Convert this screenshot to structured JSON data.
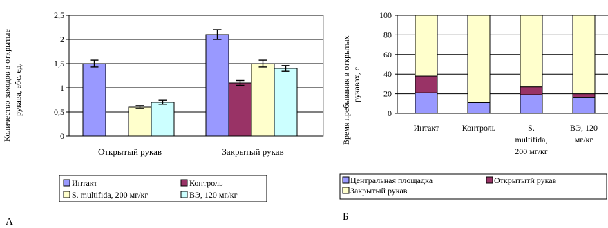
{
  "panel_labels": {
    "a": "А",
    "b": "Б"
  },
  "colors": {
    "intact": "#9999ff",
    "control": "#993366",
    "smultifida": "#ffffcc",
    "ve": "#ccffff",
    "central": "#9999ff",
    "open": "#993366",
    "closed": "#ffffcc"
  },
  "chart_data": [
    {
      "type": "bar",
      "ylabel": "Количество заходов в открытые рукава, абс. ед.",
      "ylim": [
        0,
        2.5
      ],
      "yticks": [
        "0",
        "0,5",
        "1",
        "1,5",
        "2",
        "2,5"
      ],
      "grid": true,
      "categories": [
        "Открытый рукав",
        "Закрытый рукав"
      ],
      "series": [
        {
          "name": "Интакт",
          "values": [
            1.5,
            2.1
          ],
          "errors": [
            0.07,
            0.1
          ]
        },
        {
          "name": "Контроль",
          "values": [
            0,
            1.1
          ],
          "errors": [
            0,
            0.05
          ]
        },
        {
          "name": "S. multifida, 200 мг/кг",
          "values": [
            0.6,
            1.5
          ],
          "errors": [
            0.03,
            0.07
          ]
        },
        {
          "name": "ВЭ, 120 мг/кг",
          "values": [
            0.7,
            1.4
          ],
          "errors": [
            0.04,
            0.06
          ]
        }
      ],
      "legend_position": "bottom"
    },
    {
      "type": "bar",
      "stacked": true,
      "percent": true,
      "ylabel": "Время пребывания в открытых рукавах, с",
      "ylim": [
        0,
        100
      ],
      "yticks": [
        "0",
        "20",
        "40",
        "60",
        "80",
        "100"
      ],
      "grid": true,
      "categories": [
        "Интакт",
        "Контроль",
        "S. multifida, 200 мг/кг",
        "ВЭ, 120 мг/кг"
      ],
      "category_lines": [
        [
          "Интакт"
        ],
        [
          "Контроль"
        ],
        [
          "S.",
          "multifida,",
          "200 мг/кг"
        ],
        [
          "ВЭ, 120",
          "мг/кг"
        ]
      ],
      "series": [
        {
          "name": "Центральная площадка",
          "values": [
            21,
            11,
            19,
            16
          ]
        },
        {
          "name": "Открытытй рукав",
          "values": [
            17,
            0,
            8,
            4
          ]
        },
        {
          "name": "Закрытый рукав",
          "values": [
            62,
            89,
            73,
            80
          ]
        }
      ],
      "legend_position": "bottom"
    }
  ]
}
